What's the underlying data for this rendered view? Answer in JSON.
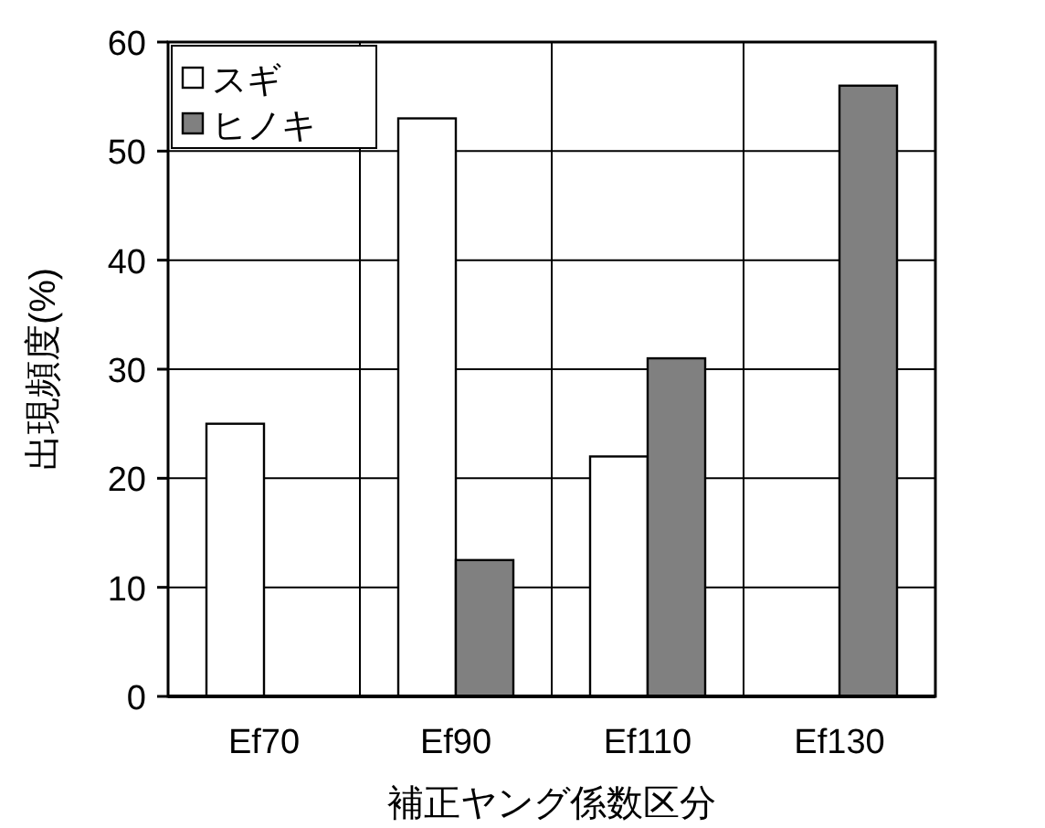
{
  "chart_data": {
    "type": "bar",
    "xlabel": "補正ヤング係数区分",
    "ylabel": "出現頻度(%)",
    "categories": [
      "Ef70",
      "Ef90",
      "Ef110",
      "Ef130"
    ],
    "series": [
      {
        "name": "スギ",
        "color": "#ffffff",
        "values": [
          25,
          53,
          22,
          0
        ]
      },
      {
        "name": "ヒノキ",
        "color": "#808080",
        "values": [
          0,
          12.5,
          31,
          56
        ]
      }
    ],
    "ylim": [
      0,
      60
    ],
    "yticks": [
      0,
      10,
      20,
      30,
      40,
      50,
      60
    ],
    "grid": true,
    "legend": "top left"
  }
}
